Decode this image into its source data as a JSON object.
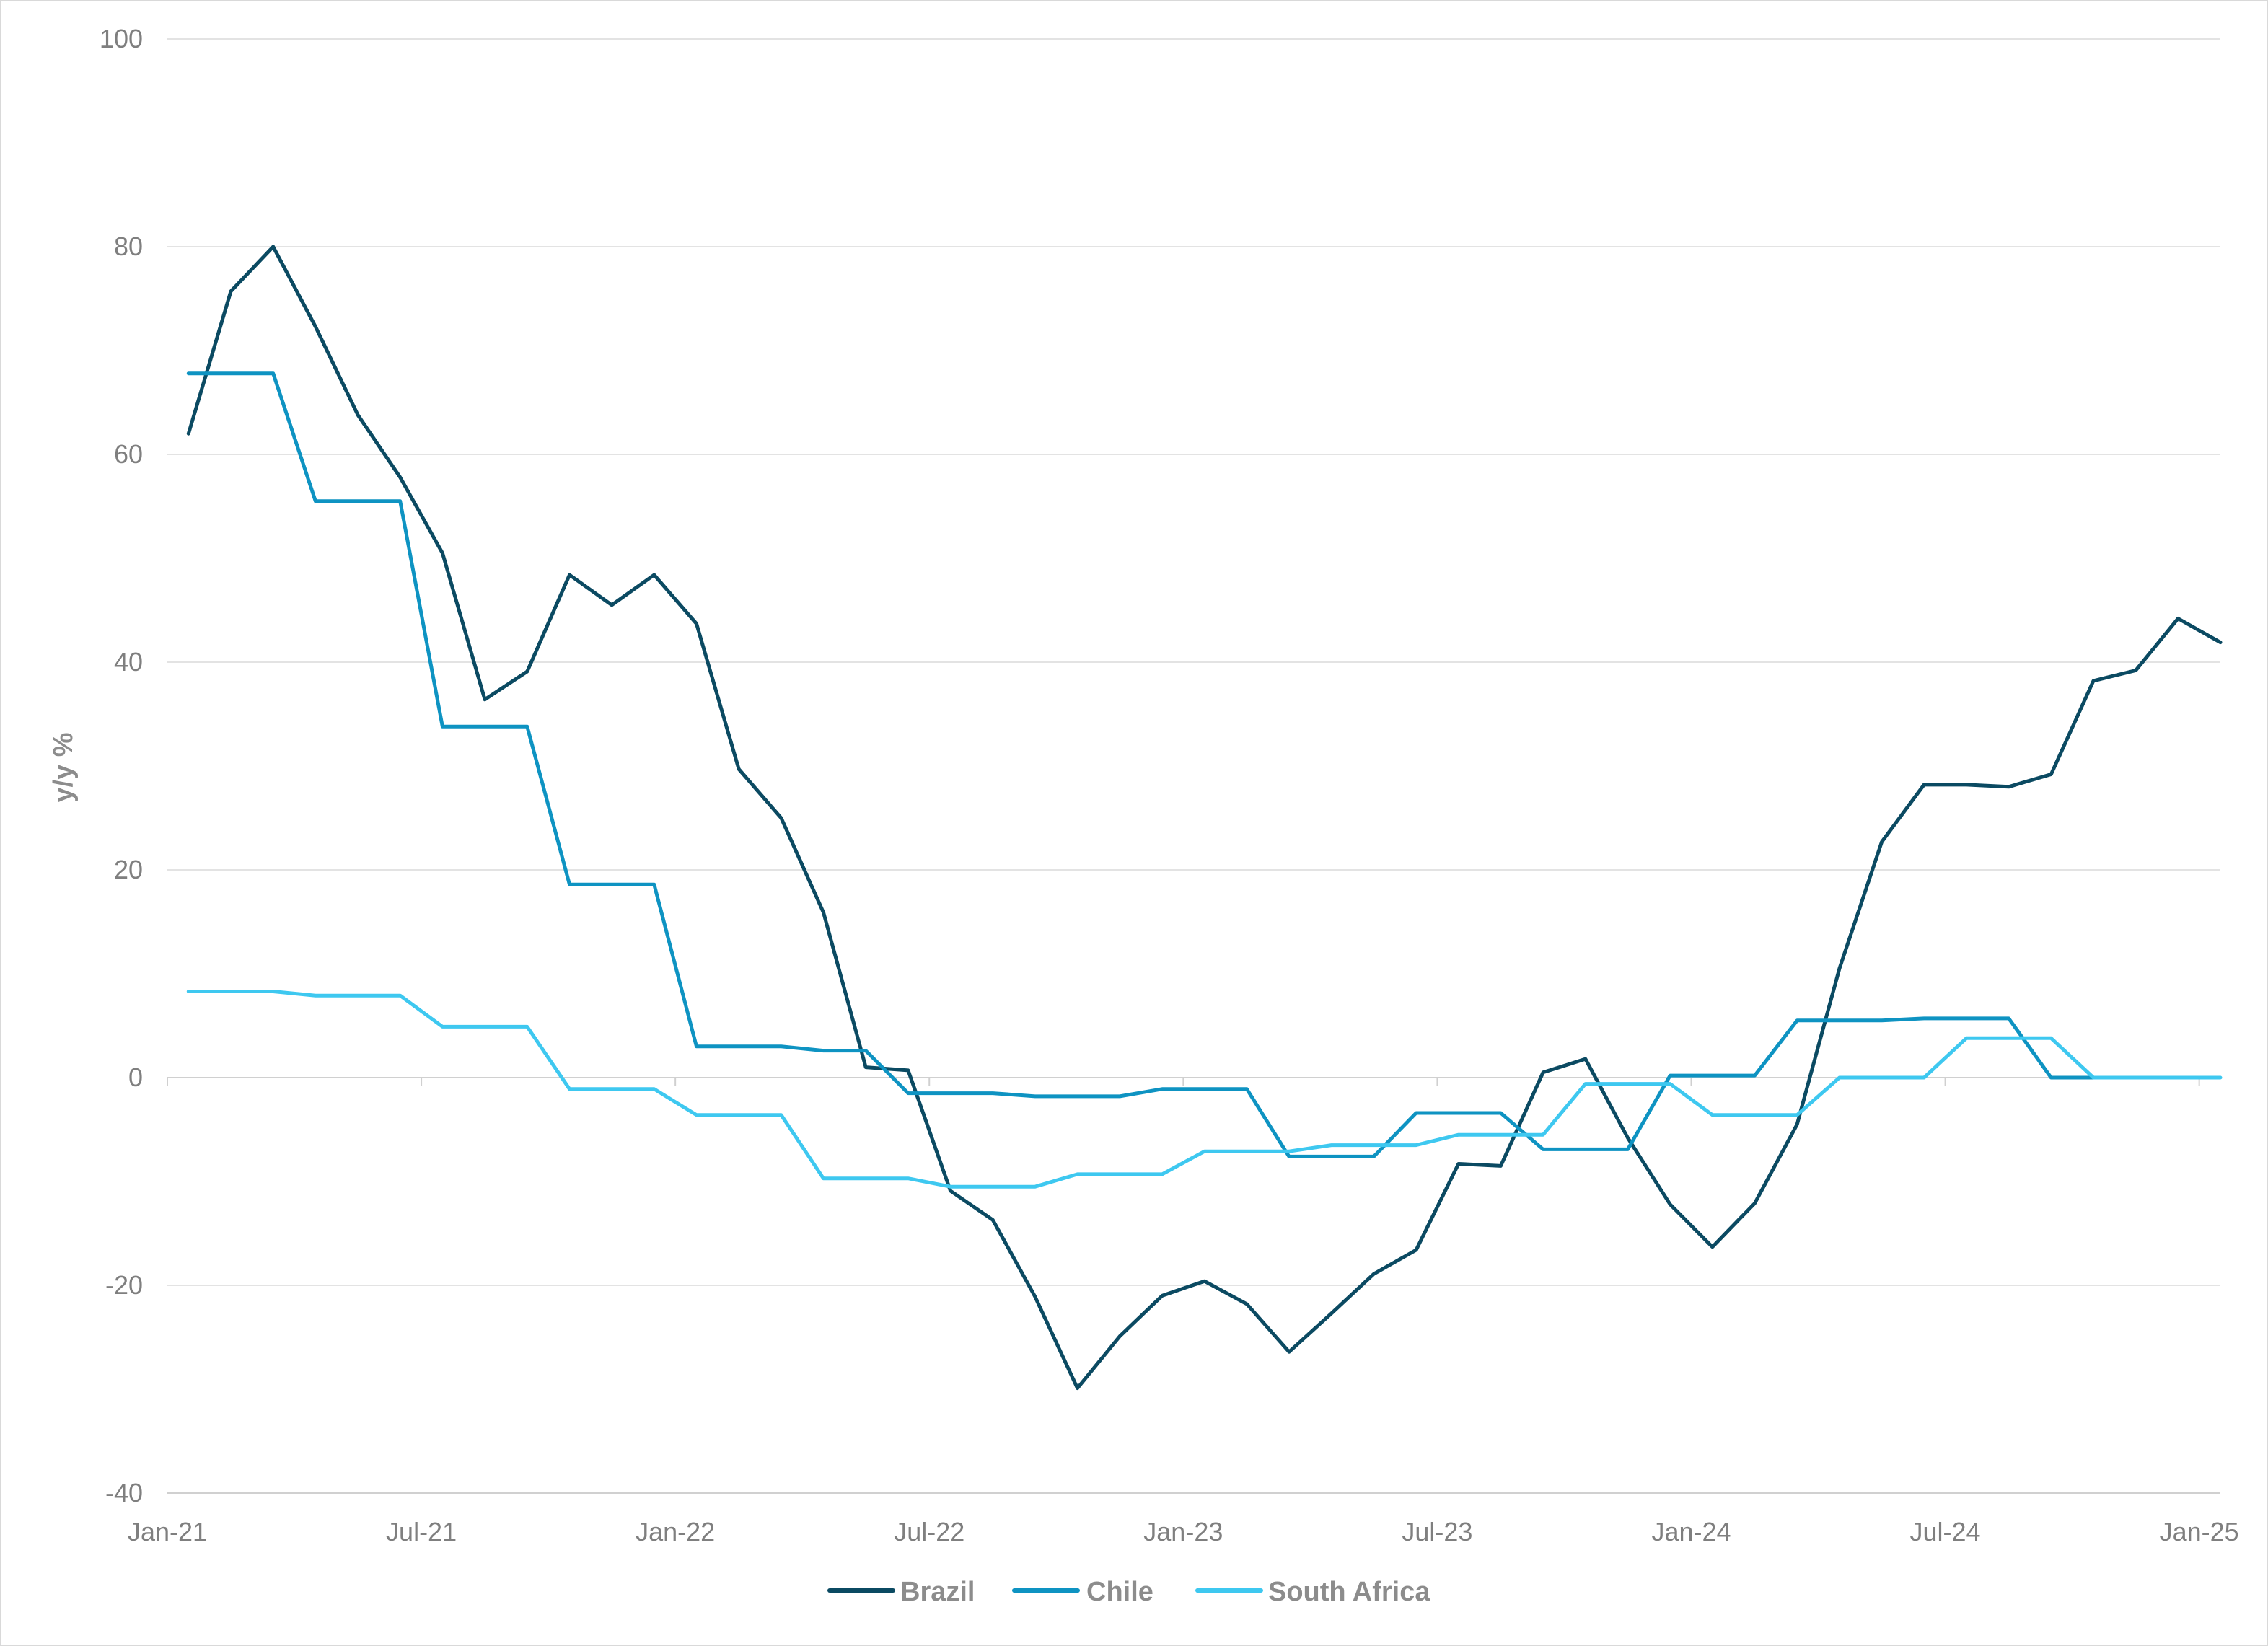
{
  "chart_data": {
    "type": "line",
    "title": "",
    "xlabel": "",
    "ylabel": "y/y %",
    "ylim": [
      -40,
      100
    ],
    "yticks": [
      100,
      80,
      60,
      40,
      20,
      0,
      -20,
      -40
    ],
    "ytick_labels": [
      "100",
      "80",
      "60",
      "40",
      "20",
      "0",
      "-20",
      "-40"
    ],
    "grid": true,
    "legend_position": "bottom",
    "x_range_months": [
      0,
      48.5
    ],
    "xticks": [
      {
        "label": "Jan-21",
        "month": 0
      },
      {
        "label": "Jul-21",
        "month": 6
      },
      {
        "label": "Jan-22",
        "month": 12
      },
      {
        "label": "Jul-22",
        "month": 18
      },
      {
        "label": "Jan-23",
        "month": 24
      },
      {
        "label": "Jul-23",
        "month": 30
      },
      {
        "label": "Jan-24",
        "month": 36
      },
      {
        "label": "Jul-24",
        "month": 42
      },
      {
        "label": "Jan-25",
        "month": 48
      }
    ],
    "series": [
      {
        "name": "Brazil",
        "color": "#0b4a62",
        "start_month": 0.5,
        "values": [
          62,
          75.7,
          80,
          72.3,
          63.8,
          57.8,
          50.5,
          36.4,
          39.1,
          48.4,
          45.5,
          48.4,
          43.7,
          29.7,
          25.0,
          15.9,
          1.0,
          0.7,
          -10.9,
          -13.7,
          -21.1,
          -29.9,
          -24.9,
          -21.0,
          -19.6,
          -21.8,
          -26.4,
          -22.7,
          -18.9,
          -16.6,
          -8.3,
          -8.5,
          0.5,
          1.8,
          -5.8,
          -12.2,
          -16.3,
          -12.1,
          -4.5,
          10.5,
          22.7,
          28.2,
          28.2,
          28.0,
          29.2,
          38.2,
          39.2,
          44.2,
          41.9
        ]
      },
      {
        "name": "Chile",
        "color": "#0e93c2",
        "start_month": 0.5,
        "values": [
          67.8,
          67.8,
          67.8,
          55.5,
          55.5,
          55.5,
          33.8,
          33.8,
          33.8,
          18.6,
          18.6,
          18.6,
          3.0,
          3.0,
          3.0,
          2.6,
          2.6,
          -1.5,
          -1.5,
          -1.5,
          -1.8,
          -1.8,
          -1.8,
          -1.1,
          -1.1,
          -1.1,
          -7.6,
          -7.6,
          -7.6,
          -3.4,
          -3.4,
          -3.4,
          -6.9,
          -6.9,
          -6.9,
          0.2,
          0.2,
          0.2,
          5.5,
          5.5,
          5.5,
          5.7,
          5.7,
          5.7,
          0.0,
          0.0,
          0.0,
          0.0
        ]
      },
      {
        "name": "South Africa",
        "color": "#3ec8f0",
        "start_month": 0.5,
        "values": [
          8.3,
          8.3,
          8.3,
          7.9,
          7.9,
          7.9,
          4.9,
          4.9,
          4.9,
          -1.1,
          -1.1,
          -1.1,
          -3.6,
          -3.6,
          -3.6,
          -9.7,
          -9.7,
          -9.7,
          -10.5,
          -10.5,
          -10.5,
          -9.3,
          -9.3,
          -9.3,
          -7.1,
          -7.1,
          -7.1,
          -6.5,
          -6.5,
          -6.5,
          -5.5,
          -5.5,
          -5.5,
          -0.6,
          -0.6,
          -0.6,
          -3.6,
          -3.6,
          -3.6,
          0.0,
          0.0,
          0.0,
          3.8,
          3.8,
          3.8,
          0.0,
          0.0,
          0.0,
          0.0
        ]
      }
    ]
  }
}
